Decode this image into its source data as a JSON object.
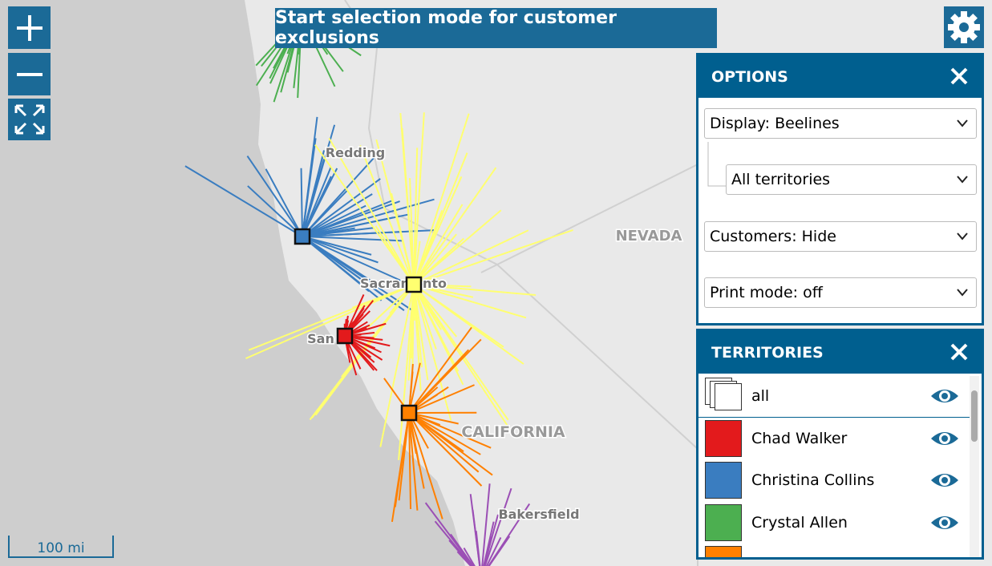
{
  "toolbar": {
    "selection_button": "Start selection mode for customer exclusions"
  },
  "map": {
    "labels": {
      "redding": "Redding",
      "nevada": "NEVADA",
      "california": "CALIFORNIA",
      "san": "San",
      "sacramento": "Sacramento",
      "bakersfield": "Bakersfield"
    },
    "scale": "100 mi"
  },
  "options": {
    "title": "OPTIONS",
    "display": "Display: Beelines",
    "territory_filter": "All territories",
    "customers": "Customers: Hide",
    "print_mode": "Print mode: off"
  },
  "territories": {
    "title": "TERRITORIES",
    "items": [
      {
        "name": "all"
      },
      {
        "name": "Chad Walker",
        "color": "#e31a1c"
      },
      {
        "name": "Christina Collins",
        "color": "#3a7dc0"
      },
      {
        "name": "Crystal Allen",
        "color": "#4caf50"
      },
      {
        "color": "#ff8000"
      }
    ]
  }
}
